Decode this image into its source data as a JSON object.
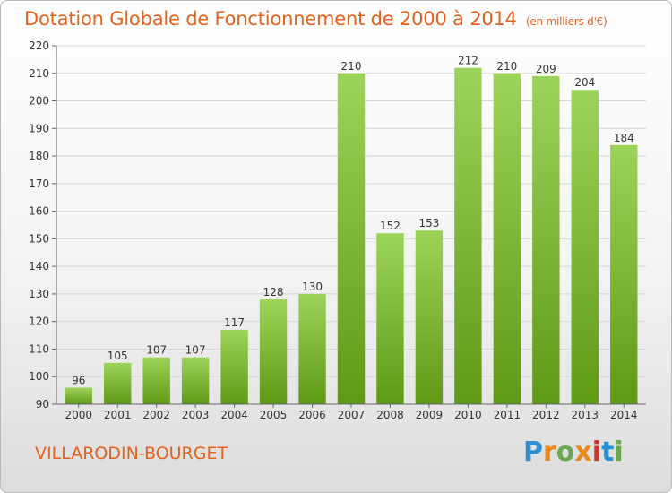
{
  "header": {
    "title": "Dotation Globale de Fonctionnement de 2000 à 2014",
    "unit": "(en milliers d'€)"
  },
  "footer": {
    "commune": "VILLARODIN-BOURGET",
    "logo_text": "Proxiti",
    "logo_colors": [
      "#2b8fd1",
      "#e8891d",
      "#6aa84f",
      "#e8891d",
      "#c8392b",
      "#2b8fd1",
      "#6aa84f"
    ]
  },
  "colors": {
    "bar_top": "#9dd35a",
    "bar_bottom": "#5f9a16",
    "title": "#e2621f",
    "grid": "#d6d6d6",
    "axis_text": "#333333"
  },
  "chart_data": {
    "type": "bar",
    "categories": [
      "2000",
      "2001",
      "2002",
      "2003",
      "2004",
      "2005",
      "2006",
      "2007",
      "2008",
      "2009",
      "2010",
      "2011",
      "2012",
      "2013",
      "2014"
    ],
    "values": [
      96,
      105,
      107,
      107,
      117,
      128,
      130,
      210,
      152,
      153,
      212,
      210,
      209,
      204,
      184
    ],
    "ylim": [
      90,
      220
    ],
    "yticks": [
      90,
      100,
      110,
      120,
      130,
      140,
      150,
      160,
      170,
      180,
      190,
      200,
      210,
      220
    ],
    "grid": true,
    "legend": "none"
  }
}
